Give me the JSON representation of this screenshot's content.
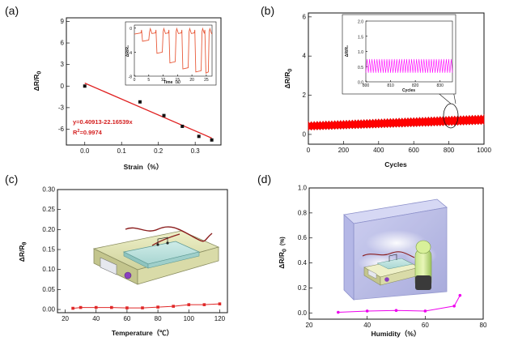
{
  "chart_data": [
    {
      "type": "scatter",
      "panel_label": "(a)",
      "xlabel": "Strain（%）",
      "ylabel": "ΔR/R",
      "ylabel_sub": "0",
      "xlim": [
        -0.05,
        0.37
      ],
      "ylim": [
        -8.2,
        9.5
      ],
      "xticks": [
        0.0,
        0.1,
        0.2,
        0.3
      ],
      "xtick_labels": [
        "0.0",
        "0.1",
        "0.2",
        "0.3"
      ],
      "yticks": [
        -6,
        -3,
        0,
        3,
        6,
        9
      ],
      "ytick_labels": [
        "-6",
        "-3",
        "0",
        "3",
        "6",
        "9"
      ],
      "series": [
        {
          "name": "data",
          "points": [
            [
              0.0,
              0.0
            ],
            [
              0.15,
              -2.2
            ],
            [
              0.215,
              -4.1
            ],
            [
              0.265,
              -5.6
            ],
            [
              0.31,
              -7.0
            ],
            [
              0.345,
              -7.5
            ]
          ]
        }
      ],
      "fit": {
        "intercept": 0.40913,
        "slope": -22.16539,
        "x_range": [
          0.0,
          0.345
        ]
      },
      "equation": "y=0.40913-22.16539x",
      "r2_base": "R",
      "r2_sup": "2",
      "r2_value": "=0.9974",
      "inset": {
        "xlabel": "Time（s）",
        "ylabel": "ΔR/R₀",
        "xlim": [
          0,
          27
        ],
        "ylim": [
          -8,
          0.5
        ],
        "xticks": [
          0,
          5,
          10,
          15,
          20,
          25
        ],
        "xtick_labels": [
          "0",
          "5",
          "10",
          "15",
          "20",
          "25"
        ],
        "yticks": [
          0,
          -4,
          -8
        ],
        "ytick_labels": [
          "0",
          "-4",
          "-8"
        ],
        "pulses": [
          [
            2.5,
            5.3,
            -2.2
          ],
          [
            7.5,
            10.0,
            -4.2
          ],
          [
            12.0,
            14.5,
            -5.8
          ],
          [
            16.5,
            19.0,
            -6.8
          ],
          [
            21.0,
            23.5,
            -7.3
          ],
          [
            24.5,
            26.0,
            -7.5
          ]
        ]
      }
    },
    {
      "type": "line",
      "panel_label": "(b)",
      "xlabel": "Cycles",
      "ylabel": "ΔR/R",
      "ylabel_sub": "0",
      "xlim": [
        0,
        1000
      ],
      "ylim": [
        -0.5,
        6.2
      ],
      "xticks": [
        0,
        200,
        400,
        600,
        800,
        1000
      ],
      "xtick_labels": [
        "0",
        "200",
        "400",
        "600",
        "800",
        "1000"
      ],
      "yticks": [
        0,
        2,
        4,
        6
      ],
      "ytick_labels": [
        "0",
        "2",
        "4",
        "6"
      ],
      "band": {
        "start": [
          0.25,
          0.6
        ],
        "end": [
          0.55,
          0.95
        ]
      },
      "inset": {
        "xlabel": "Cycles",
        "ylabel": "ΔR/R₀",
        "xlim": [
          800,
          835
        ],
        "ylim": [
          0,
          2.0
        ],
        "xticks": [
          800,
          810,
          820,
          830
        ],
        "xtick_labels": [
          "800",
          "810",
          "820",
          "830"
        ],
        "yticks": [
          0.0,
          0.5,
          1.0,
          1.5,
          2.0
        ],
        "ytick_labels": [
          "0.0",
          "0.5",
          "1.0",
          "1.5",
          "2.0"
        ],
        "oscillation": {
          "low": 0.3,
          "high": 0.75,
          "cycles": 35
        }
      }
    },
    {
      "type": "line",
      "panel_label": "(c)",
      "xlabel": "Temperature（℃）",
      "ylabel": "ΔR/R",
      "ylabel_sub": "θ",
      "xlim": [
        15,
        125
      ],
      "ylim": [
        -0.008,
        0.3
      ],
      "xticks": [
        20,
        40,
        60,
        80,
        100,
        120
      ],
      "xtick_labels": [
        "20",
        "40",
        "60",
        "80",
        "100",
        "120"
      ],
      "yticks": [
        0.0,
        0.05,
        0.1,
        0.15,
        0.2,
        0.25,
        0.3
      ],
      "ytick_labels": [
        "0.00",
        "0.05",
        "0.10",
        "0.15",
        "0.20",
        "0.25",
        "0.30"
      ],
      "series": [
        {
          "name": "temperature",
          "x": [
            25,
            30,
            40,
            50,
            60,
            70,
            80,
            90,
            100,
            110,
            120
          ],
          "y": [
            0.003,
            0.005,
            0.005,
            0.005,
            0.004,
            0.004,
            0.006,
            0.008,
            0.012,
            0.012,
            0.014
          ]
        }
      ]
    },
    {
      "type": "line",
      "panel_label": "(d)",
      "xlabel": "Humidity（%）",
      "ylabel": "ΔR/R",
      "ylabel_sub": "0",
      "ylabel_unit": "(%)",
      "xlim": [
        20,
        80
      ],
      "ylim": [
        -0.05,
        1.0
      ],
      "xticks": [
        20,
        40,
        60,
        80
      ],
      "xtick_labels": [
        "20",
        "40",
        "60",
        "80"
      ],
      "yticks": [
        0.0,
        0.2,
        0.4,
        0.6,
        0.8,
        1.0
      ],
      "ytick_labels": [
        "0.0",
        "0.2",
        "0.4",
        "0.6",
        "0.8",
        "1.0"
      ],
      "series": [
        {
          "name": "humidity",
          "x": [
            30,
            40,
            50,
            60,
            70,
            72
          ],
          "y": [
            0.005,
            0.015,
            0.02,
            0.015,
            0.055,
            0.14
          ]
        }
      ]
    }
  ],
  "colors": {
    "axis": "#111111",
    "fit": "#e02020",
    "point": "#111111",
    "cycles": "#ff0000",
    "inset_a": "#e85a3a",
    "inset_b": "#ff00ff",
    "temp": "#e02828",
    "humid": "#ee00ee"
  },
  "icons": {
    "hotplate": "hotplate-with-sensor-illustration",
    "chamber": "humidity-chamber-illustration"
  }
}
